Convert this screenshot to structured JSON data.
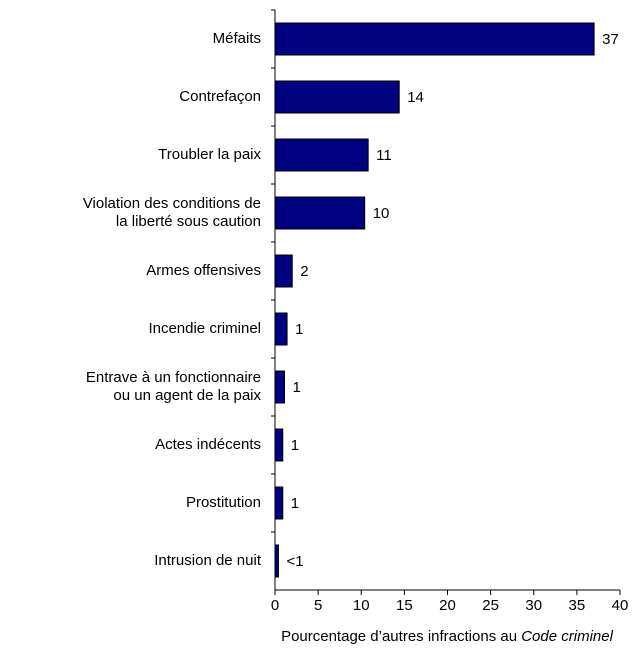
{
  "chart_data": {
    "type": "bar",
    "orientation": "horizontal",
    "categories": [
      "Méfaits",
      "Contrefaçon",
      "Troubler la paix",
      "Violation des conditions de\nla liberté sous caution",
      "Armes offensives",
      "Incendie criminel",
      "Entrave à un fonctionnaire\nou un agent de la paix",
      "Actes indécents",
      "Prostitution",
      "Intrusion de nuit"
    ],
    "values": [
      37,
      14.4,
      10.8,
      10.4,
      2,
      1.4,
      1.1,
      0.9,
      0.9,
      0.4
    ],
    "value_labels": [
      "37",
      "14",
      "11",
      "10",
      "2",
      "1",
      "1",
      "1",
      "1",
      "<1"
    ],
    "color": "#000080",
    "xlim": [
      0,
      40
    ],
    "xticks": [
      0,
      5,
      10,
      15,
      20,
      25,
      30,
      35,
      40
    ],
    "x_label": [
      "Pourcentage d’autres infractions au ",
      "Code criminel"
    ]
  }
}
